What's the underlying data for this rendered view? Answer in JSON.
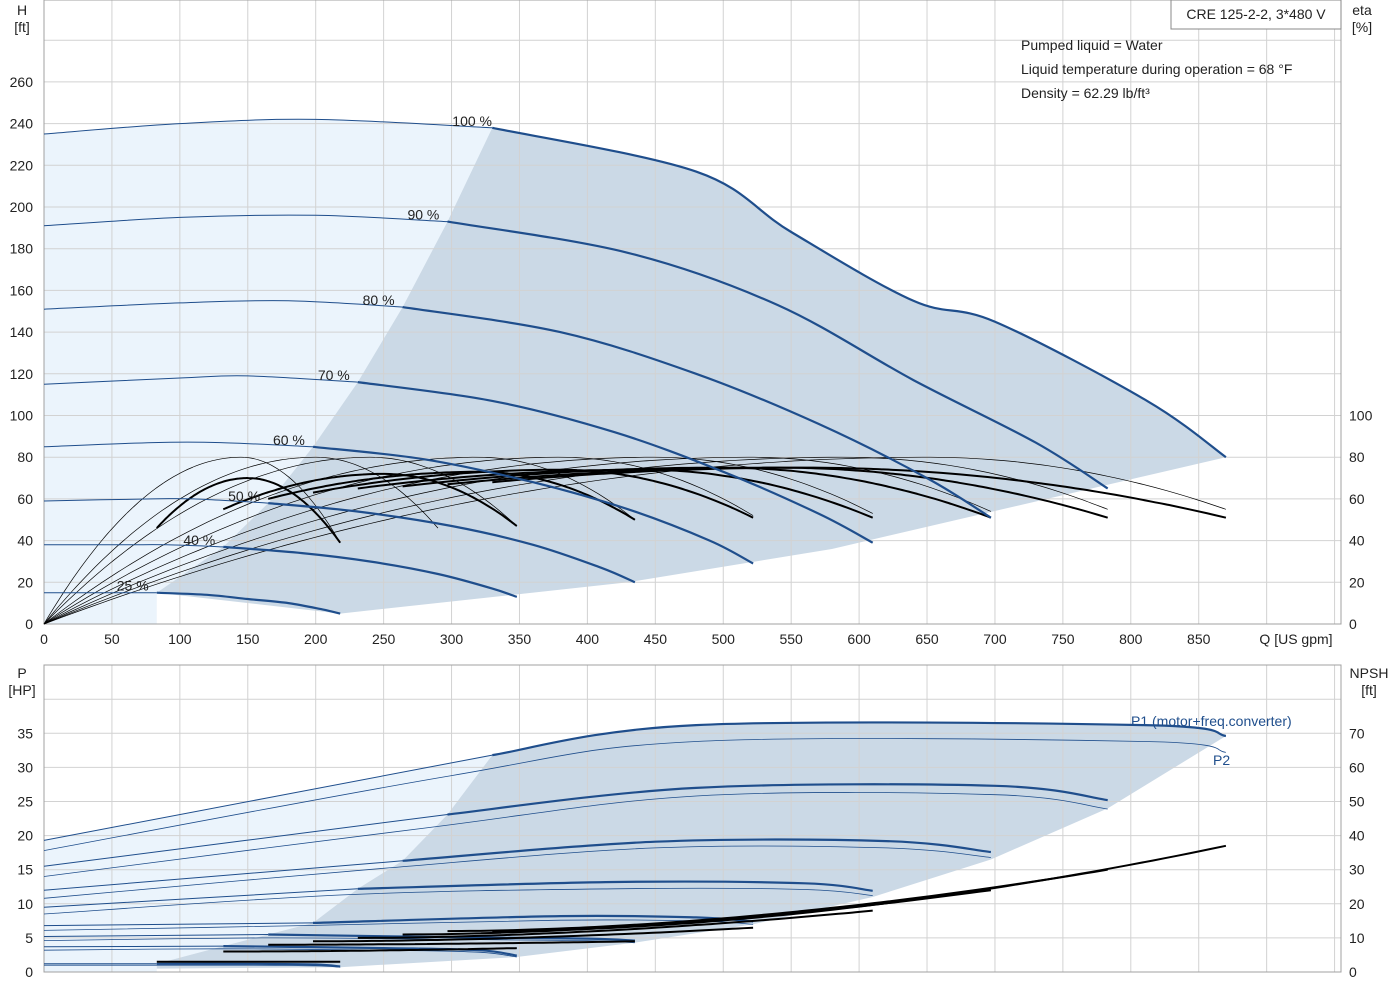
{
  "chart_data": [
    {
      "type": "line",
      "id": "qh",
      "title_box": "CRE 125-2-2, 3*480 V",
      "annotations": [
        "Pumped liquid = Water",
        "Liquid temperature during operation = 68 °F",
        "Density = 62.29 lb/ft³"
      ],
      "xlabel": "Q [US gpm]",
      "ylabel_left": [
        "H",
        "[ft]"
      ],
      "ylabel_right": [
        "eta",
        "[%]"
      ],
      "xlim": [
        0,
        950
      ],
      "ylim_left": [
        0,
        300
      ],
      "ylim_right": [
        0,
        300
      ],
      "x_ticks": [
        0,
        50,
        100,
        150,
        200,
        250,
        300,
        350,
        400,
        450,
        500,
        550,
        600,
        650,
        700,
        750,
        800,
        850
      ],
      "y_ticks_left": [
        0,
        20,
        40,
        60,
        80,
        100,
        120,
        140,
        160,
        180,
        200,
        220,
        240,
        260
      ],
      "y_ticks_right": [
        0,
        20,
        40,
        60,
        80,
        100
      ],
      "colors": {
        "head": "#1f4e8c",
        "eta": "#000000",
        "region_light": "#ebf4fc",
        "region_dark": "#cbd9e6"
      },
      "head_curves": [
        {
          "label": "100 %",
          "x": [
            0,
            100,
            200,
            330,
            480,
            550,
            640,
            700,
            812,
            870
          ],
          "y": [
            235,
            240,
            242,
            238,
            217,
            188,
            155,
            145,
            107,
            80
          ]
        },
        {
          "label": "90 %",
          "x": [
            0,
            100,
            200,
            297,
            430,
            540,
            640,
            730,
            783
          ],
          "y": [
            191,
            195,
            196,
            193,
            178,
            153,
            117,
            87,
            65
          ]
        },
        {
          "label": "80 %",
          "x": [
            0,
            100,
            180,
            264,
            380,
            480,
            570,
            650,
            697
          ],
          "y": [
            151,
            154,
            155,
            152,
            140,
            120,
            96,
            70,
            51
          ]
        },
        {
          "label": "70 %",
          "x": [
            0,
            100,
            150,
            231,
            330,
            420,
            500,
            570,
            610
          ],
          "y": [
            115,
            118,
            119,
            116,
            107,
            92,
            73,
            53,
            39
          ]
        },
        {
          "label": "60 %",
          "x": [
            0,
            80,
            130,
            198,
            280,
            360,
            430,
            490,
            522
          ],
          "y": [
            85,
            87,
            87,
            85,
            79,
            68,
            55,
            40,
            29
          ]
        },
        {
          "label": "50 %",
          "x": [
            0,
            80,
            110,
            165,
            230,
            300,
            360,
            410,
            435
          ],
          "y": [
            59,
            60,
            60,
            58,
            54,
            47,
            38,
            27,
            20
          ]
        },
        {
          "label": "40 %",
          "x": [
            0,
            60,
            90,
            132,
            190,
            240,
            290,
            330,
            348
          ],
          "y": [
            38,
            38,
            38,
            37,
            34,
            30,
            24,
            17,
            13
          ]
        },
        {
          "label": "25 %",
          "x": [
            0,
            40,
            60,
            83,
            120,
            150,
            180,
            205,
            218
          ],
          "y": [
            15,
            15,
            15,
            15,
            14,
            12,
            10,
            7,
            5
          ]
        }
      ],
      "region_boundary": {
        "x": [
          83,
          132,
          165,
          198,
          231,
          264,
          297,
          330,
          870,
          580,
          430,
          218
        ],
        "y": [
          15,
          37,
          58,
          85,
          116,
          152,
          193,
          238,
          80,
          36,
          20,
          5
        ]
      },
      "eta_curves_thin": [
        {
          "end_x": 218,
          "peak_x": 145,
          "peak_y": 80,
          "end_y": 39
        },
        {
          "end_x": 290,
          "peak_x": 200,
          "peak_y": 80,
          "end_y": 46
        },
        {
          "end_x": 348,
          "peak_x": 240,
          "peak_y": 80,
          "end_y": 47
        },
        {
          "end_x": 435,
          "peak_x": 320,
          "peak_y": 80,
          "end_y": 50
        },
        {
          "end_x": 522,
          "peak_x": 380,
          "peak_y": 80,
          "end_y": 52
        },
        {
          "end_x": 610,
          "peak_x": 450,
          "peak_y": 80,
          "end_y": 53
        },
        {
          "end_x": 697,
          "peak_x": 520,
          "peak_y": 80,
          "end_y": 54
        },
        {
          "end_x": 783,
          "peak_x": 590,
          "peak_y": 80,
          "end_y": 55
        },
        {
          "end_x": 870,
          "peak_x": 650,
          "peak_y": 80,
          "end_y": 55
        }
      ],
      "eta_curves_bold": [
        {
          "start_x": 83,
          "end_x": 218,
          "peak_x": 150,
          "peak_y": 70,
          "start_y": 46,
          "end_y": 39
        },
        {
          "start_x": 132,
          "end_x": 348,
          "peak_x": 250,
          "peak_y": 72,
          "start_y": 55,
          "end_y": 47
        },
        {
          "start_x": 165,
          "end_x": 435,
          "peak_x": 320,
          "peak_y": 73,
          "start_y": 60,
          "end_y": 50
        },
        {
          "start_x": 198,
          "end_x": 522,
          "peak_x": 380,
          "peak_y": 74,
          "start_y": 63,
          "end_y": 51
        },
        {
          "start_x": 231,
          "end_x": 610,
          "peak_x": 440,
          "peak_y": 74,
          "start_y": 65,
          "end_y": 51
        },
        {
          "start_x": 264,
          "end_x": 697,
          "peak_x": 500,
          "peak_y": 75,
          "start_y": 66,
          "end_y": 51
        },
        {
          "start_x": 297,
          "end_x": 783,
          "peak_x": 540,
          "peak_y": 75,
          "start_y": 67,
          "end_y": 51
        },
        {
          "start_x": 330,
          "end_x": 870,
          "peak_x": 560,
          "peak_y": 75,
          "start_y": 68,
          "end_y": 51
        }
      ]
    },
    {
      "type": "line",
      "id": "power",
      "xlabel": "",
      "ylabel_left": [
        "P",
        "[HP]"
      ],
      "ylabel_right": [
        "NPSH",
        "[ft]"
      ],
      "xlim": [
        0,
        950
      ],
      "ylim_left": [
        0,
        40
      ],
      "ylim_right": [
        0,
        80
      ],
      "y_ticks_left": [
        0,
        5,
        10,
        15,
        20,
        25,
        30,
        35
      ],
      "y_ticks_right": [
        0,
        10,
        20,
        30,
        40,
        50,
        60,
        70
      ],
      "series_labels": [
        "P1 (motor+freq.converter)",
        "P2"
      ],
      "p1_curves": [
        {
          "x": [
            0,
            330,
            480,
            810,
            870
          ],
          "y": [
            19.3,
            31.8,
            36.2,
            36.2,
            34.6
          ]
        },
        {
          "x": [
            0,
            297,
            480,
            700,
            783
          ],
          "y": [
            15.5,
            23.1,
            27.0,
            27.3,
            25.2
          ]
        },
        {
          "x": [
            0,
            264,
            450,
            620,
            697
          ],
          "y": [
            12.0,
            16.3,
            19.1,
            19.2,
            17.6
          ]
        },
        {
          "x": [
            0,
            231,
            420,
            560,
            610
          ],
          "y": [
            9.5,
            12.2,
            13.2,
            13.0,
            11.9
          ]
        },
        {
          "x": [
            0,
            198,
            380,
            480,
            522
          ],
          "y": [
            6.8,
            7.2,
            8.2,
            8.0,
            7.4
          ]
        },
        {
          "x": [
            0,
            165,
            300,
            400,
            435
          ],
          "y": [
            5.2,
            5.5,
            5.1,
            4.9,
            4.6
          ]
        },
        {
          "x": [
            0,
            132,
            250,
            320,
            348
          ],
          "y": [
            3.7,
            3.8,
            3.5,
            3.2,
            2.4
          ]
        },
        {
          "x": [
            0,
            83,
            150,
            200,
            218
          ],
          "y": [
            1.2,
            1.2,
            1.2,
            1.1,
            0.8
          ]
        }
      ],
      "p2_curves": [
        {
          "x": [
            0,
            300,
            480,
            810,
            870
          ],
          "y": [
            17.8,
            28.8,
            33.8,
            33.8,
            32.2
          ]
        },
        {
          "x": [
            0,
            280,
            480,
            700,
            783
          ],
          "y": [
            14.0,
            21.1,
            25.8,
            26.0,
            23.9
          ]
        },
        {
          "x": [
            0,
            250,
            450,
            620,
            697
          ],
          "y": [
            10.8,
            15.2,
            18.2,
            18.2,
            16.8
          ]
        },
        {
          "x": [
            0,
            220,
            420,
            560,
            610
          ],
          "y": [
            8.5,
            11.3,
            12.2,
            12.1,
            11.2
          ]
        },
        {
          "x": [
            0,
            190,
            380,
            480,
            522
          ],
          "y": [
            6.1,
            6.8,
            7.6,
            7.5,
            7.0
          ]
        },
        {
          "x": [
            0,
            160,
            300,
            400,
            435
          ],
          "y": [
            4.6,
            5.0,
            4.8,
            4.6,
            4.3
          ]
        },
        {
          "x": [
            0,
            130,
            250,
            320,
            348
          ],
          "y": [
            3.2,
            3.4,
            3.2,
            2.9,
            2.2
          ]
        },
        {
          "x": [
            0,
            83,
            150,
            200,
            218
          ],
          "y": [
            1.0,
            1.0,
            1.0,
            0.9,
            0.7
          ]
        }
      ],
      "npsh_curves": [
        {
          "start_x": 330,
          "end_x": 870,
          "start_y": 12,
          "end_y": 37
        },
        {
          "start_x": 297,
          "end_x": 783,
          "start_y": 12,
          "end_y": 30
        },
        {
          "start_x": 264,
          "end_x": 697,
          "start_y": 11,
          "end_y": 24
        },
        {
          "start_x": 231,
          "end_x": 610,
          "start_y": 10,
          "end_y": 18
        },
        {
          "start_x": 198,
          "end_x": 522,
          "start_y": 9,
          "end_y": 13
        },
        {
          "start_x": 165,
          "end_x": 435,
          "start_y": 8,
          "end_y": 9
        },
        {
          "start_x": 132,
          "end_x": 348,
          "start_y": 6,
          "end_y": 7
        },
        {
          "start_x": 83,
          "end_x": 218,
          "start_y": 3,
          "end_y": 3
        }
      ]
    }
  ]
}
